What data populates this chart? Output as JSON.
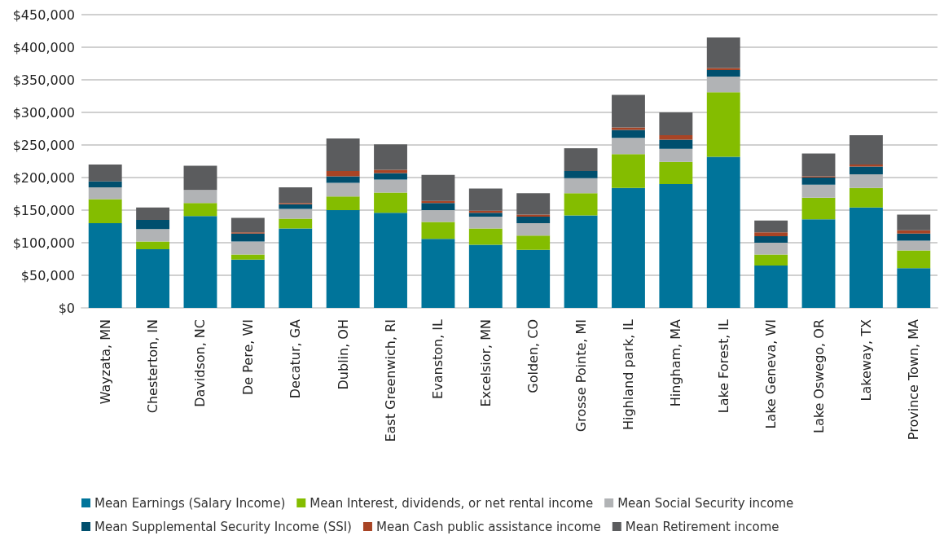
{
  "chart_data": {
    "type": "bar",
    "stacked": true,
    "categories": [
      "Wayzata, MN",
      "Chesterton, IN",
      "Davidson, NC",
      "De Pere, WI",
      "Decatur, GA",
      "Dublin, OH",
      "East Greenwich, RI",
      "Evanston, IL",
      "Excelsior, MN",
      "Golden, CO",
      "Grosse Pointe, MI",
      "Highland park, IL",
      "Hingham, MA",
      "Lake Forest, IL",
      "Lake Geneva, WI",
      "Lake Oswego, OR",
      "Lakeway, TX",
      "Province Town, MA"
    ],
    "series": [
      {
        "name": "Mean Earnings (Salary Income)",
        "color": "#00749a",
        "values": [
          130000,
          90000,
          141000,
          74000,
          122000,
          150000,
          146000,
          106000,
          97000,
          89000,
          142000,
          184000,
          190000,
          232000,
          65000,
          136000,
          154000,
          61000
        ]
      },
      {
        "name": "Mean Interest, dividends, or net rental income",
        "color": "#84bd00",
        "values": [
          37000,
          12000,
          20000,
          8000,
          15000,
          21000,
          31000,
          26000,
          25000,
          22000,
          34000,
          52000,
          34000,
          99000,
          17000,
          33000,
          30000,
          27000
        ]
      },
      {
        "name": "Mean Social Security income",
        "color": "#b1b3b5",
        "values": [
          18000,
          19000,
          20000,
          20000,
          15000,
          21000,
          20000,
          18000,
          18000,
          19000,
          23000,
          25000,
          20000,
          24000,
          18000,
          20000,
          21000,
          15000
        ]
      },
      {
        "name": "Mean Supplemental Security Income (SSI)",
        "color": "#004f6e",
        "values": [
          9000,
          14000,
          0,
          12000,
          7000,
          10000,
          10000,
          11000,
          6000,
          10000,
          11000,
          12000,
          14000,
          10000,
          10000,
          11000,
          12000,
          11000
        ]
      },
      {
        "name": "Mean Cash public assistance income",
        "color": "#a84425",
        "values": [
          0,
          0,
          0,
          2000,
          2000,
          8000,
          5000,
          3000,
          3000,
          3000,
          0,
          4000,
          7000,
          3000,
          6000,
          2000,
          3000,
          5000
        ]
      },
      {
        "name": "Mean Retirement income",
        "color": "#5b5c5e",
        "values": [
          26000,
          19000,
          37000,
          22000,
          24000,
          50000,
          39000,
          40000,
          34000,
          33000,
          35000,
          50000,
          35000,
          47000,
          18000,
          35000,
          45000,
          24000
        ]
      }
    ],
    "ylim": [
      0,
      450000
    ],
    "yticks": [
      {
        "value": 0,
        "label": "$0"
      },
      {
        "value": 50000,
        "label": "$50,000"
      },
      {
        "value": 100000,
        "label": "$100,000"
      },
      {
        "value": 150000,
        "label": "$150,000"
      },
      {
        "value": 200000,
        "label": "$200,000"
      },
      {
        "value": 250000,
        "label": "$250,000"
      },
      {
        "value": 300000,
        "label": "$300,000"
      },
      {
        "value": 350000,
        "label": "$350,000"
      },
      {
        "value": 400000,
        "label": "$400,000"
      },
      {
        "value": 450000,
        "label": "$450,000"
      }
    ],
    "grid": "y",
    "legend": "bottom"
  }
}
